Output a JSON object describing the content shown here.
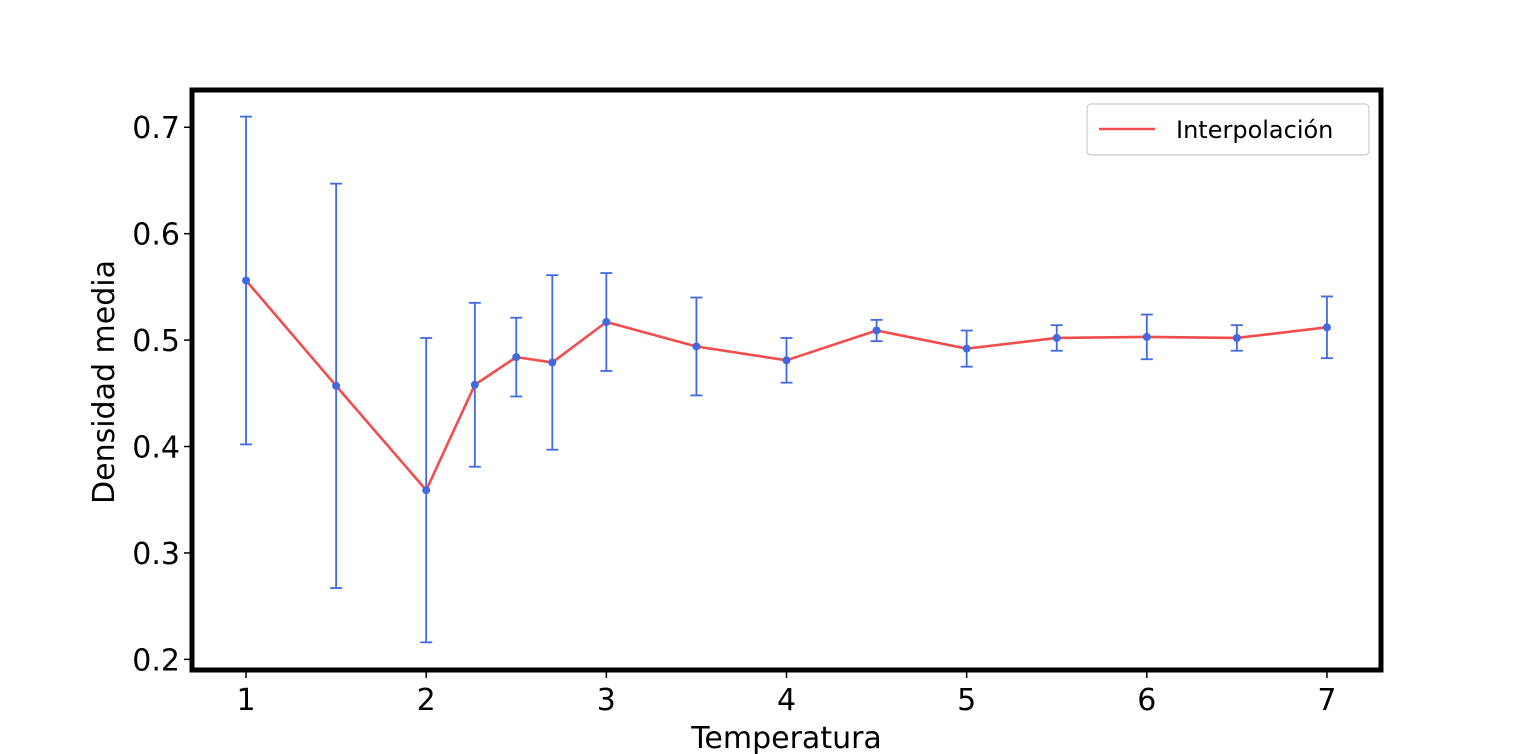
{
  "chart_data": {
    "type": "line",
    "title": "",
    "xlabel": "Temperatura",
    "ylabel": "Densidad media",
    "xlim": [
      0.7,
      7.3
    ],
    "ylim": [
      0.19,
      0.735
    ],
    "xticks": [
      1,
      2,
      3,
      4,
      5,
      6,
      7
    ],
    "xtick_labels": [
      "1",
      "2",
      "3",
      "4",
      "5",
      "6",
      "7"
    ],
    "yticks": [
      0.2,
      0.3,
      0.4,
      0.5,
      0.6,
      0.7
    ],
    "ytick_labels": [
      "0.2",
      "0.3",
      "0.4",
      "0.5",
      "0.6",
      "0.7"
    ],
    "grid": false,
    "legend_position": "upper right",
    "series": [
      {
        "name": "Interpolación",
        "color": "#f24d4d",
        "marker_color": "#4169e1",
        "x": [
          1.0,
          1.5,
          2.0,
          2.27,
          2.5,
          2.7,
          3.0,
          3.5,
          4.0,
          4.5,
          5.0,
          5.5,
          6.0,
          6.5,
          7.0
        ],
        "y": [
          0.556,
          0.457,
          0.359,
          0.458,
          0.484,
          0.479,
          0.517,
          0.494,
          0.481,
          0.509,
          0.492,
          0.502,
          0.503,
          0.502,
          0.512
        ],
        "yerr": [
          0.154,
          0.19,
          0.143,
          0.077,
          0.037,
          0.082,
          0.046,
          0.046,
          0.021,
          0.01,
          0.017,
          0.012,
          0.021,
          0.012,
          0.029
        ]
      }
    ]
  }
}
